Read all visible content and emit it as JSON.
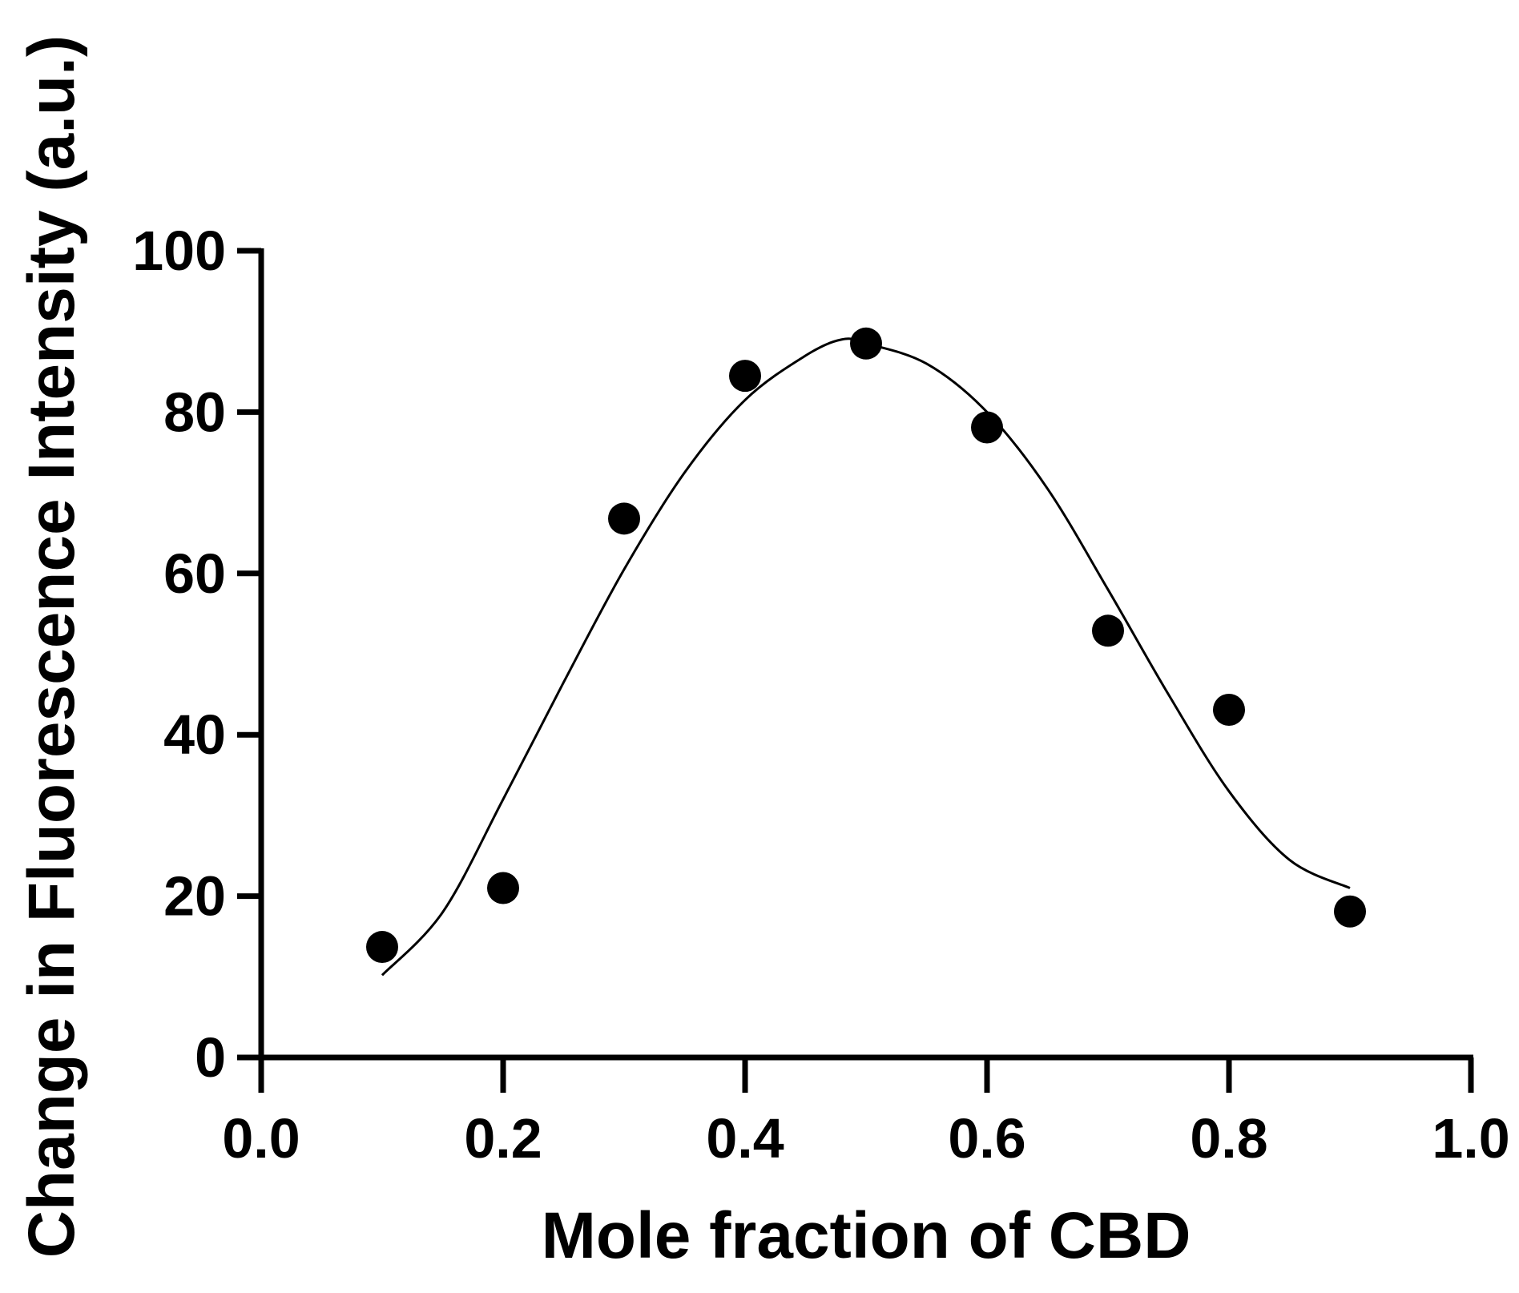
{
  "chart_data": {
    "type": "scatter",
    "title": "",
    "xlabel": "Mole fraction of CBD",
    "ylabel": "Change in Fluorescence Intensity (a.u.)",
    "xlim": [
      0.0,
      1.0
    ],
    "ylim": [
      0,
      100
    ],
    "x_ticks": [
      0.0,
      0.2,
      0.4,
      0.6,
      0.8,
      1.0
    ],
    "x_tick_labels": [
      "0.0",
      "0.2",
      "0.4",
      "0.6",
      "0.8",
      "1.0"
    ],
    "y_ticks": [
      0,
      20,
      40,
      60,
      80,
      100
    ],
    "y_tick_labels": [
      "0",
      "20",
      "40",
      "60",
      "80",
      "100"
    ],
    "grid": false,
    "legend": "none",
    "series": [
      {
        "type": "scatter",
        "x": [
          0.1,
          0.2,
          0.3,
          0.4,
          0.5,
          0.6,
          0.7,
          0.8,
          0.9
        ],
        "y": [
          13.7,
          21.0,
          66.8,
          84.5,
          88.5,
          78.1,
          52.9,
          43.1,
          18.1
        ]
      },
      {
        "type": "line",
        "x": [
          0.1,
          0.15,
          0.2,
          0.25,
          0.3,
          0.35,
          0.4,
          0.45,
          0.48,
          0.5,
          0.55,
          0.6,
          0.65,
          0.7,
          0.75,
          0.8,
          0.85,
          0.9
        ],
        "y": [
          10.2,
          18.0,
          32.0,
          46.5,
          60.5,
          72.5,
          81.5,
          87.0,
          89.0,
          88.5,
          86.0,
          80.0,
          70.5,
          58.0,
          45.0,
          33.0,
          24.5,
          21.0
        ]
      }
    ],
    "colors": {
      "axis": "#000000",
      "markers": "#000000",
      "fit_line": "#000000"
    }
  }
}
